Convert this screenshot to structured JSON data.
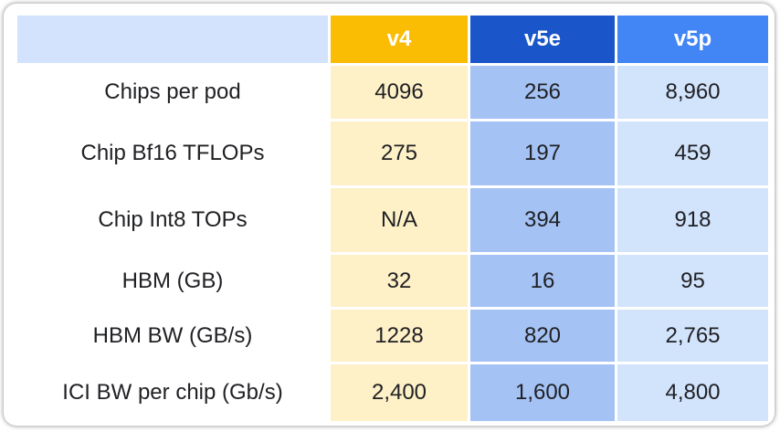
{
  "table": {
    "columns": [
      "",
      "v4",
      "v5e",
      "v5p"
    ],
    "rows": [
      {
        "label": "Chips per pod",
        "v4": "4096",
        "v5e": "256",
        "v5p": "8,960"
      },
      {
        "label": "Chip Bf16 TFLOPs",
        "v4": "275",
        "v5e": "197",
        "v5p": "459"
      },
      {
        "label": "Chip Int8 TOPs",
        "v4": "N/A",
        "v5e": "394",
        "v5p": "918"
      },
      {
        "label": "HBM (GB)",
        "v4": "32",
        "v5e": "16",
        "v5p": "95"
      },
      {
        "label": "HBM BW (GB/s)",
        "v4": "1228",
        "v5e": "820",
        "v5p": "2,765"
      },
      {
        "label": "ICI BW per chip (Gb/s)",
        "v4": "2,400",
        "v5e": "1,600",
        "v5p": "4,800"
      }
    ]
  },
  "colors": {
    "v4_header": "#fbbc04",
    "v5e_header": "#1a56c9",
    "v5p_header": "#4285f4",
    "corner_header": "#d3e3fd",
    "v4_cells": "#fef0c7",
    "v5e_cells": "#a4c2f4",
    "v5p_cells": "#d2e3fc"
  }
}
